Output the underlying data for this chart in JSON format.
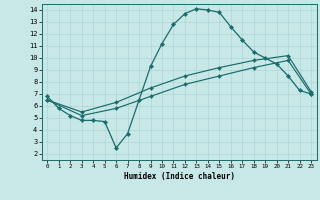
{
  "xlabel": "Humidex (Indice chaleur)",
  "background_color": "#c8e8e8",
  "line_color": "#1a6b6b",
  "grid_color": "#b0d4d4",
  "xlim": [
    -0.5,
    23.5
  ],
  "ylim": [
    1.5,
    14.5
  ],
  "xticks": [
    0,
    1,
    2,
    3,
    4,
    5,
    6,
    7,
    8,
    9,
    10,
    11,
    12,
    13,
    14,
    15,
    16,
    17,
    18,
    19,
    20,
    21,
    22,
    23
  ],
  "yticks": [
    2,
    3,
    4,
    5,
    6,
    7,
    8,
    9,
    10,
    11,
    12,
    13,
    14
  ],
  "line1_x": [
    0,
    1,
    2,
    3,
    4,
    5,
    6,
    7,
    8,
    9,
    10,
    11,
    12,
    13,
    14,
    15,
    16,
    17,
    18,
    19,
    20,
    21,
    22,
    23
  ],
  "line1_y": [
    6.8,
    5.8,
    5.2,
    4.8,
    4.8,
    4.7,
    2.5,
    3.7,
    6.5,
    9.3,
    11.2,
    12.8,
    13.7,
    14.1,
    14.0,
    13.8,
    12.6,
    11.5,
    10.5,
    10.0,
    9.5,
    8.5,
    7.3,
    7.0
  ],
  "line2_x": [
    0,
    3,
    6,
    9,
    12,
    15,
    18,
    21,
    23
  ],
  "line2_y": [
    6.5,
    5.5,
    6.3,
    7.5,
    8.5,
    9.2,
    9.8,
    10.2,
    7.2
  ],
  "line3_x": [
    0,
    3,
    6,
    9,
    12,
    15,
    18,
    21,
    23
  ],
  "line3_y": [
    6.5,
    5.2,
    5.8,
    6.8,
    7.8,
    8.5,
    9.2,
    9.8,
    7.0
  ]
}
